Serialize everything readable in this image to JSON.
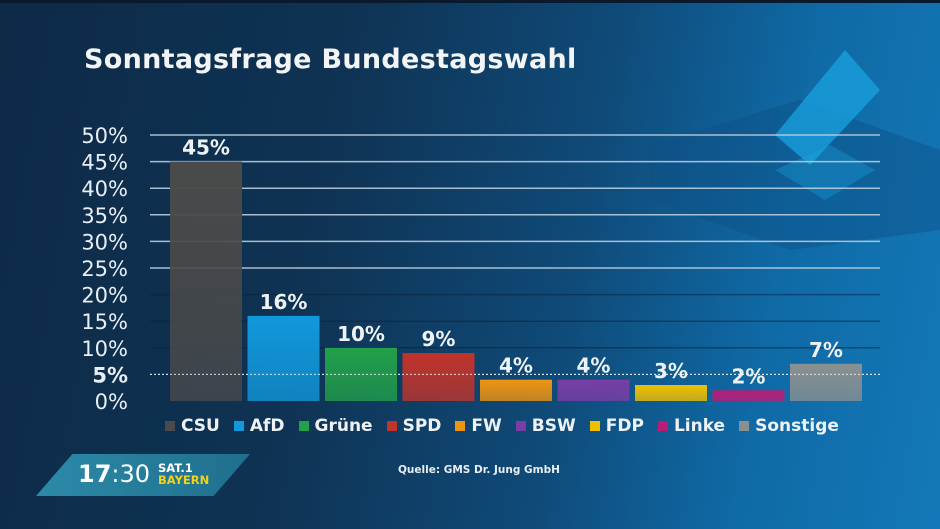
{
  "title": "Sonntagsfrage Bundestagswahl",
  "source": "Quelle: GMS Dr. Jung GmbH",
  "broadcast": {
    "time_hours": "17",
    "time_sep": ":",
    "time_minutes": "30",
    "channel": "SAT.1",
    "region": "BAYERN"
  },
  "colors": {
    "accent_region": "#f2d21a",
    "background": "#0f3354"
  },
  "chart_data": {
    "type": "bar",
    "title": "Sonntagsfrage Bundestagswahl",
    "xlabel": "",
    "ylabel": "",
    "categories": [
      "CSU",
      "AfD",
      "Grüne",
      "SPD",
      "FW",
      "BSW",
      "FDP",
      "Linke",
      "Sonstige"
    ],
    "values": [
      45,
      16,
      10,
      9,
      4,
      4,
      3,
      2,
      7
    ],
    "value_labels": [
      "45%",
      "16%",
      "10%",
      "9%",
      "4%",
      "4%",
      "3%",
      "2%",
      "7%"
    ],
    "colors": [
      "#4a4a4a",
      "#1199dd",
      "#22a04a",
      "#c0342a",
      "#ee9510",
      "#7a3da6",
      "#f0c000",
      "#b81c78",
      "#8a9090"
    ],
    "ylim": [
      0,
      50
    ],
    "yticks": [
      0,
      5,
      10,
      15,
      20,
      25,
      30,
      35,
      40,
      45,
      50
    ],
    "ytick_labels": [
      "0%",
      "5%",
      "10%",
      "15%",
      "20%",
      "25%",
      "30%",
      "35%",
      "40%",
      "45%",
      "50%"
    ],
    "highlight_tick": 5,
    "grid": true,
    "legend": "bottom"
  }
}
